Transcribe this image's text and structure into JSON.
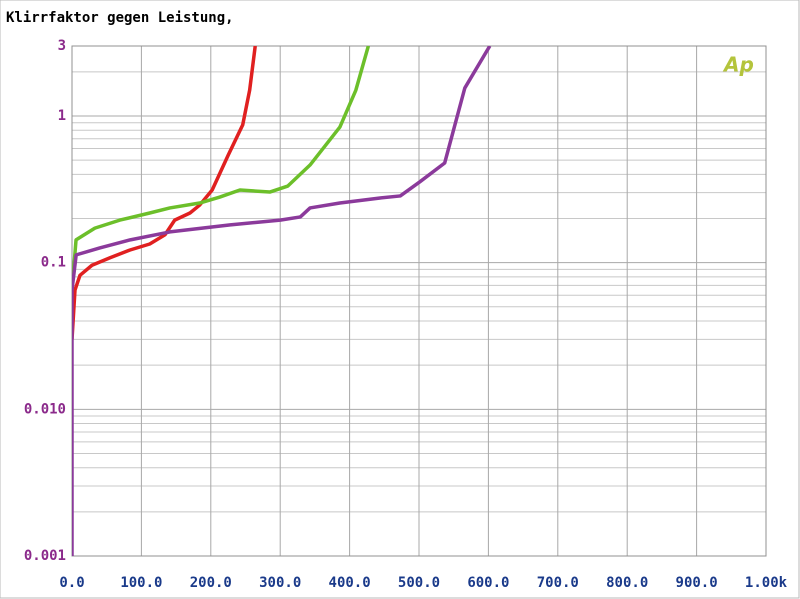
{
  "chart_data": {
    "type": "line",
    "title": "Klirrfaktor gegen Leistung,",
    "logo": "Ap",
    "xlim": [
      0,
      1000
    ],
    "xticks": [
      {
        "value": 0,
        "label": "0.0"
      },
      {
        "value": 100,
        "label": "100.0"
      },
      {
        "value": 200,
        "label": "200.0"
      },
      {
        "value": 300,
        "label": "300.0"
      },
      {
        "value": 400,
        "label": "400.0"
      },
      {
        "value": 500,
        "label": "500.0"
      },
      {
        "value": 600,
        "label": "600.0"
      },
      {
        "value": 700,
        "label": "700.0"
      },
      {
        "value": 800,
        "label": "800.0"
      },
      {
        "value": 900,
        "label": "900.0"
      },
      {
        "value": 1000,
        "label": "1.00k"
      }
    ],
    "ylim": [
      0.001,
      3
    ],
    "ylog": true,
    "yticks": [
      0.001,
      {
        "value": 0.01,
        "label": "0.010"
      },
      0.1,
      1,
      3
    ],
    "grid": true,
    "series": [
      {
        "color": "#e02020",
        "x": [
          0,
          4.3,
          11.5,
          28.8,
          54.8,
          83.6,
          112,
          134,
          148,
          170,
          184,
          202,
          225,
          246,
          256,
          264
        ],
        "values": [
          0.03,
          0.065,
          0.082,
          0.096,
          0.108,
          0.122,
          0.134,
          0.155,
          0.195,
          0.218,
          0.247,
          0.313,
          0.54,
          0.87,
          1.5,
          3
        ]
      },
      {
        "color": "#6cbf2a",
        "x": [
          0,
          5.8,
          33,
          69,
          112,
          141,
          184,
          213,
          242,
          285,
          311,
          343,
          386,
          409,
          427
        ],
        "values": [
          0.065,
          0.143,
          0.172,
          0.195,
          0.218,
          0.236,
          0.255,
          0.28,
          0.313,
          0.303,
          0.333,
          0.463,
          0.84,
          1.5,
          3
        ]
      },
      {
        "color": "#8b3a9b",
        "x": [
          0,
          0,
          6,
          40,
          84,
          141,
          228,
          300,
          329,
          343,
          386,
          444,
          473,
          501,
          537,
          566,
          602
        ],
        "values": [
          0.001,
          0.065,
          0.113,
          0.126,
          0.143,
          0.162,
          0.181,
          0.195,
          0.205,
          0.236,
          0.255,
          0.276,
          0.285,
          0.355,
          0.478,
          1.55,
          3
        ]
      }
    ]
  }
}
